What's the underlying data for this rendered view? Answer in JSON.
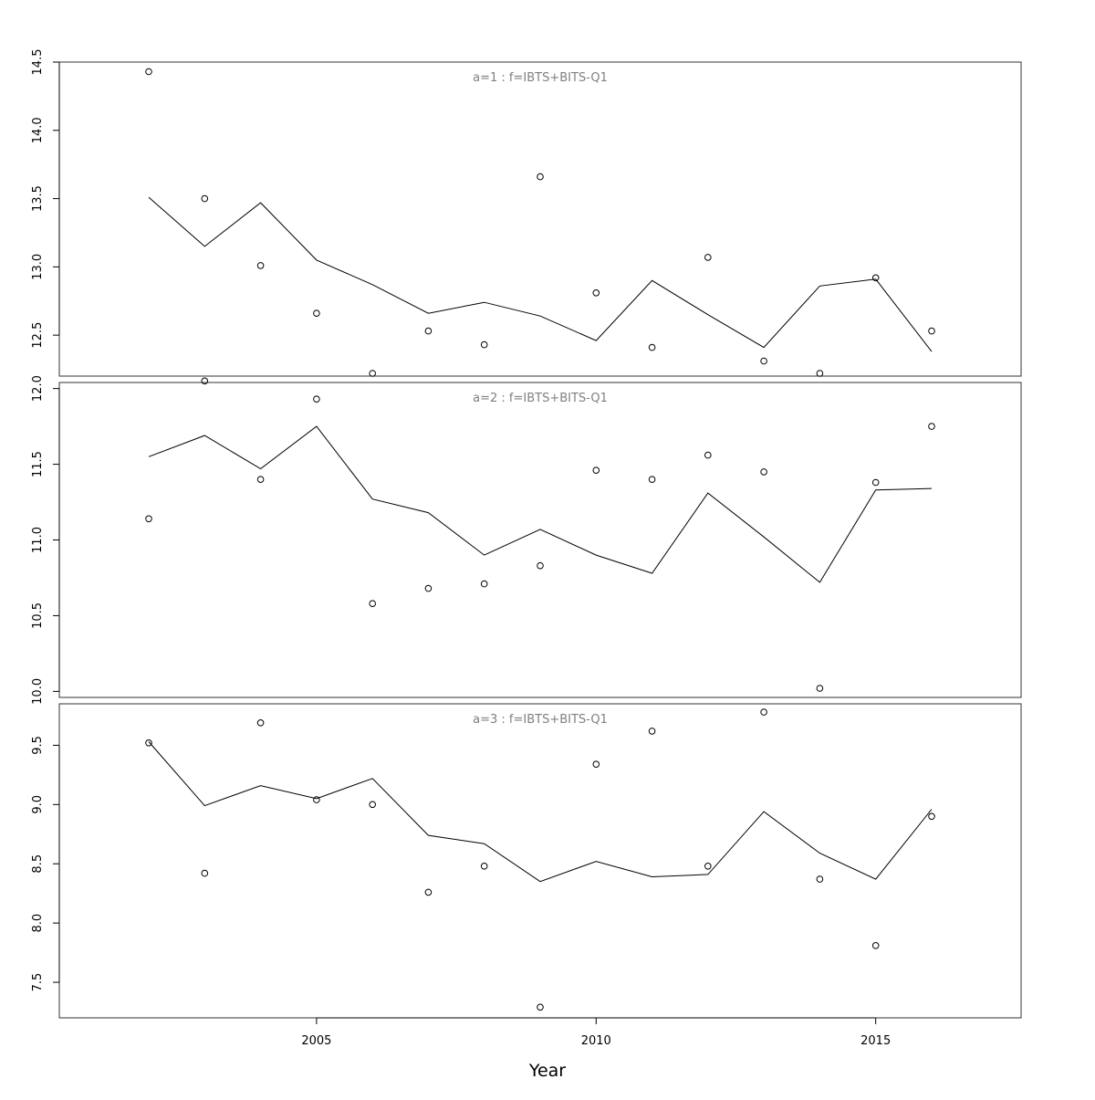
{
  "chart_data": {
    "type": "scatter",
    "xlabel": "Year",
    "xlim": [
      2000.4,
      2017.6
    ],
    "xticks": [
      2005,
      2010,
      2015
    ],
    "series_styles": {
      "observed": "points (open circles)",
      "fitted": "line"
    },
    "colors": {
      "points": "#000000",
      "line": "#000000",
      "frame": "#333333",
      "title": "#808080"
    },
    "panels": [
      {
        "title": "a=1 : f=IBTS+BITS-Q1",
        "ylim": [
          12.2,
          14.5
        ],
        "yticks": [
          "12.5",
          "13.0",
          "13.5",
          "14.0",
          "14.5"
        ],
        "x": [
          2002,
          2003,
          2004,
          2005,
          2006,
          2007,
          2008,
          2009,
          2010,
          2011,
          2012,
          2013,
          2014,
          2015,
          2016
        ],
        "observed": [
          14.43,
          13.5,
          13.01,
          12.66,
          12.22,
          12.53,
          12.43,
          13.66,
          12.81,
          12.41,
          13.07,
          12.31,
          12.22,
          12.92,
          12.53
        ],
        "fitted": [
          13.51,
          13.15,
          13.47,
          13.05,
          12.87,
          12.66,
          12.74,
          12.64,
          12.46,
          12.9,
          12.65,
          12.41,
          12.86,
          12.91,
          12.38
        ]
      },
      {
        "title": "a=2 : f=IBTS+BITS-Q1",
        "ylim": [
          9.96,
          12.04
        ],
        "yticks": [
          "10.0",
          "10.5",
          "11.0",
          "11.5",
          "12.0"
        ],
        "x": [
          2002,
          2003,
          2004,
          2005,
          2006,
          2007,
          2008,
          2009,
          2010,
          2011,
          2012,
          2013,
          2014,
          2015,
          2016
        ],
        "observed": [
          11.14,
          12.05,
          11.4,
          11.93,
          10.58,
          10.68,
          10.71,
          10.83,
          11.46,
          11.4,
          11.56,
          11.45,
          10.02,
          11.38,
          11.75
        ],
        "fitted": [
          11.55,
          11.69,
          11.47,
          11.75,
          11.27,
          11.18,
          10.9,
          11.07,
          10.9,
          10.78,
          11.31,
          11.02,
          10.72,
          11.33,
          11.34
        ]
      },
      {
        "title": "a=3 : f=IBTS+BITS-Q1",
        "ylim": [
          7.2,
          9.85
        ],
        "yticks": [
          "7.5",
          "8.0",
          "8.5",
          "9.0",
          "9.5"
        ],
        "x": [
          2002,
          2003,
          2004,
          2005,
          2006,
          2007,
          2008,
          2009,
          2010,
          2011,
          2012,
          2013,
          2014,
          2015,
          2016
        ],
        "observed": [
          9.52,
          8.42,
          9.69,
          9.04,
          9.0,
          8.26,
          8.48,
          7.29,
          9.34,
          9.62,
          8.48,
          9.78,
          8.37,
          7.81,
          8.9
        ],
        "fitted": [
          9.53,
          8.99,
          9.16,
          9.05,
          9.22,
          8.74,
          8.67,
          8.35,
          8.52,
          8.39,
          8.41,
          8.94,
          8.59,
          8.37,
          8.96
        ]
      }
    ]
  }
}
